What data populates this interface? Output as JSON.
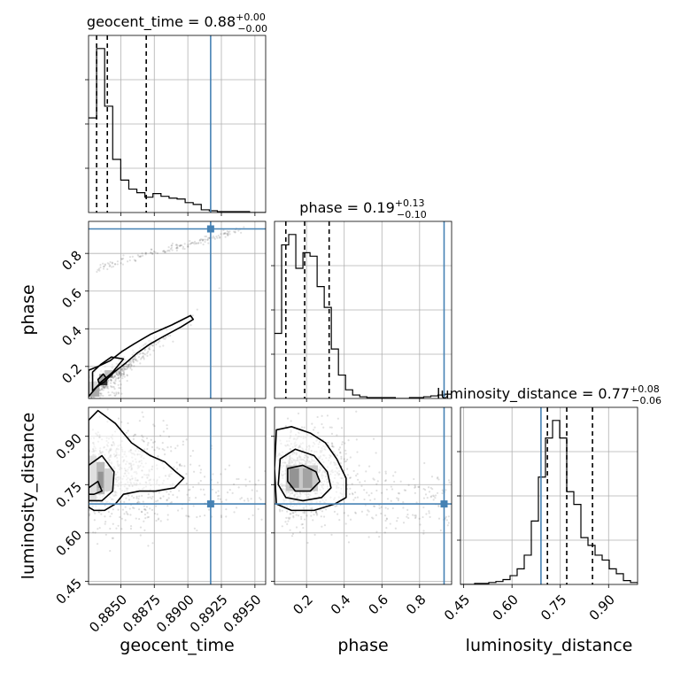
{
  "chart_data": {
    "type": "corner",
    "parameters": [
      "geocent_time",
      "phase",
      "luminosity_distance"
    ],
    "truths": {
      "geocent_time": 0.8917,
      "phase": 0.93,
      "luminosity_distance": 0.69
    },
    "ranges": {
      "geocent_time": [
        0.8826,
        0.8958
      ],
      "phase": [
        0.03,
        0.97
      ],
      "luminosity_distance": [
        0.44,
        0.99
      ]
    },
    "titles": {
      "geocent_time": {
        "prefix": "geocent_time = 0.88",
        "sup": "+0.00",
        "sub": "−0.00"
      },
      "phase": {
        "prefix": "phase = 0.19",
        "sup": "+0.13",
        "sub": "−0.10"
      },
      "luminosity_distance": {
        "prefix": "luminosity_distance = 0.77",
        "sup": "+0.08",
        "sub": "−0.06"
      }
    },
    "quantiles": {
      "geocent_time": [
        0.8832,
        0.884,
        0.8869
      ],
      "phase": [
        0.09,
        0.19,
        0.32
      ],
      "luminosity_distance": [
        0.71,
        0.77,
        0.85
      ]
    },
    "ticks": {
      "geocent_time": {
        "values": [
          0.885,
          0.8875,
          0.89,
          0.8925,
          0.895
        ],
        "labels": [
          "0.8850",
          "0.8875",
          "0.8900",
          "0.8925",
          "0.8950"
        ]
      },
      "phase": {
        "values": [
          0.2,
          0.4,
          0.6,
          0.8
        ],
        "labels": [
          "0.2",
          "0.4",
          "0.6",
          "0.8"
        ]
      },
      "luminosity_distance": {
        "values": [
          0.45,
          0.6,
          0.75,
          0.9
        ],
        "labels": [
          "0.45",
          "0.60",
          "0.75",
          "0.90"
        ]
      }
    },
    "histograms": {
      "geocent_time": {
        "edges": [
          0.8826,
          0.8832,
          0.8838,
          0.8844,
          0.885,
          0.8856,
          0.8862,
          0.8868,
          0.8874,
          0.888,
          0.8886,
          0.8892,
          0.8898,
          0.8904,
          0.891,
          0.8916,
          0.8922,
          0.8928,
          0.8934,
          0.894,
          0.8946,
          0.8952,
          0.8958
        ],
        "counts": [
          105,
          182,
          118,
          59,
          36,
          26,
          22,
          17,
          21,
          18,
          16,
          15,
          11,
          9,
          3,
          2,
          1,
          1,
          1,
          1,
          0,
          0
        ]
      },
      "phase": {
        "edges": [
          0.03,
          0.0677,
          0.1054,
          0.1431,
          0.1808,
          0.2185,
          0.2562,
          0.2939,
          0.3316,
          0.3693,
          0.407,
          0.4447,
          0.4824,
          0.5201,
          0.5578,
          0.5955,
          0.6332,
          0.671,
          0.7087,
          0.7464,
          0.7841,
          0.8218,
          0.8595,
          0.8972,
          0.935,
          0.97
        ],
        "counts": [
          75,
          177,
          189,
          150,
          168,
          164,
          129,
          105,
          57,
          27,
          10,
          4,
          2,
          1,
          1,
          1,
          1,
          0,
          0,
          1,
          1,
          2,
          3,
          4,
          5
        ]
      },
      "luminosity_distance": {
        "edges": [
          0.44,
          0.462,
          0.484,
          0.506,
          0.528,
          0.55,
          0.572,
          0.594,
          0.616,
          0.638,
          0.66,
          0.682,
          0.704,
          0.726,
          0.748,
          0.77,
          0.792,
          0.814,
          0.836,
          0.858,
          0.88,
          0.902,
          0.924,
          0.946,
          0.968,
          0.99
        ],
        "counts": [
          0,
          0,
          1,
          1,
          2,
          3,
          5,
          9,
          16,
          30,
          65,
          110,
          150,
          168,
          150,
          95,
          82,
          48,
          40,
          30,
          25,
          16,
          11,
          4,
          2
        ]
      }
    },
    "contours": {
      "phase_vs_geocent_time": [
        [
          [
            0.8826,
            0.04
          ],
          [
            0.8832,
            0.09
          ],
          [
            0.8838,
            0.12
          ],
          [
            0.8845,
            0.17
          ],
          [
            0.8854,
            0.22
          ],
          [
            0.8862,
            0.27
          ],
          [
            0.8872,
            0.32
          ],
          [
            0.8882,
            0.36
          ],
          [
            0.8895,
            0.41
          ],
          [
            0.8904,
            0.45
          ],
          [
            0.8902,
            0.47
          ],
          [
            0.8888,
            0.42
          ],
          [
            0.8872,
            0.37
          ],
          [
            0.886,
            0.32
          ],
          [
            0.8851,
            0.28
          ],
          [
            0.8842,
            0.23
          ],
          [
            0.8833,
            0.2
          ],
          [
            0.8826,
            0.18
          ]
        ],
        [
          [
            0.8829,
            0.07
          ],
          [
            0.8836,
            0.12
          ],
          [
            0.8844,
            0.17
          ],
          [
            0.8852,
            0.24
          ],
          [
            0.8843,
            0.25
          ],
          [
            0.8835,
            0.21
          ],
          [
            0.8829,
            0.17
          ]
        ],
        [
          [
            0.8834,
            0.11
          ],
          [
            0.8839,
            0.14
          ],
          [
            0.8837,
            0.16
          ],
          [
            0.8833,
            0.13
          ]
        ]
      ],
      "luminosity_distance_vs_geocent_time": [
        [
          [
            0.8826,
            0.95
          ],
          [
            0.8833,
            0.98
          ],
          [
            0.8846,
            0.94
          ],
          [
            0.8858,
            0.88
          ],
          [
            0.8872,
            0.84
          ],
          [
            0.8883,
            0.82
          ],
          [
            0.8891,
            0.79
          ],
          [
            0.8897,
            0.77
          ],
          [
            0.889,
            0.74
          ],
          [
            0.8876,
            0.73
          ],
          [
            0.8864,
            0.73
          ],
          [
            0.8852,
            0.72
          ],
          [
            0.8846,
            0.69
          ],
          [
            0.8838,
            0.67
          ],
          [
            0.883,
            0.67
          ],
          [
            0.8826,
            0.68
          ]
        ],
        [
          [
            0.8826,
            0.81
          ],
          [
            0.8836,
            0.84
          ],
          [
            0.8845,
            0.79
          ],
          [
            0.8844,
            0.73
          ],
          [
            0.8836,
            0.7
          ],
          [
            0.8826,
            0.7
          ]
        ],
        [
          [
            0.8826,
            0.74
          ],
          [
            0.8833,
            0.76
          ],
          [
            0.8836,
            0.73
          ],
          [
            0.883,
            0.72
          ],
          [
            0.8826,
            0.72
          ]
        ]
      ],
      "luminosity_distance_vs_phase": [
        [
          [
            0.04,
            0.92
          ],
          [
            0.12,
            0.93
          ],
          [
            0.22,
            0.91
          ],
          [
            0.3,
            0.88
          ],
          [
            0.36,
            0.83
          ],
          [
            0.41,
            0.77
          ],
          [
            0.41,
            0.71
          ],
          [
            0.35,
            0.69
          ],
          [
            0.24,
            0.67
          ],
          [
            0.12,
            0.67
          ],
          [
            0.04,
            0.69
          ],
          [
            0.03,
            0.8
          ]
        ],
        [
          [
            0.06,
            0.83
          ],
          [
            0.14,
            0.86
          ],
          [
            0.24,
            0.84
          ],
          [
            0.31,
            0.79
          ],
          [
            0.33,
            0.74
          ],
          [
            0.28,
            0.71
          ],
          [
            0.18,
            0.7
          ],
          [
            0.09,
            0.71
          ],
          [
            0.05,
            0.75
          ]
        ],
        [
          [
            0.1,
            0.8
          ],
          [
            0.18,
            0.81
          ],
          [
            0.25,
            0.79
          ],
          [
            0.27,
            0.76
          ],
          [
            0.22,
            0.73
          ],
          [
            0.14,
            0.73
          ],
          [
            0.1,
            0.76
          ]
        ]
      ]
    },
    "colors": {
      "truth": "#4682b4",
      "contour": "#000000",
      "grid": "#b0b0b0"
    }
  }
}
